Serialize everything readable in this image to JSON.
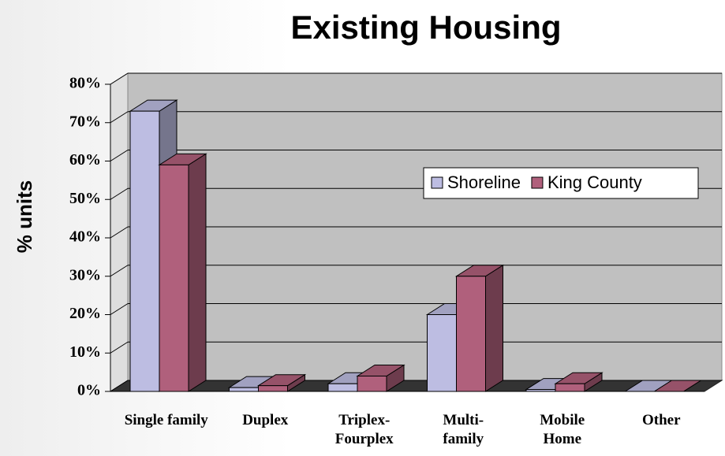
{
  "chart_data": {
    "type": "bar3d",
    "title": "Existing Housing",
    "y_label": "% units",
    "categories": [
      "Single family",
      "Duplex",
      "Triplex-\nFourplex",
      "Multi-\nfamily",
      "Mobile\nHome",
      "Other"
    ],
    "series": [
      {
        "name": "Shoreline",
        "color": "#bdbde2",
        "values": [
          73,
          1,
          2,
          20,
          0.5,
          0
        ]
      },
      {
        "name": "King County",
        "color": "#b0607c",
        "values": [
          59,
          1.5,
          4,
          30,
          2,
          0
        ]
      }
    ],
    "ylim": [
      0,
      80
    ],
    "yticks": [
      {
        "value": 0,
        "label": "0%"
      },
      {
        "value": 10,
        "label": "10%"
      },
      {
        "value": 20,
        "label": "20%"
      },
      {
        "value": 30,
        "label": "30%"
      },
      {
        "value": 40,
        "label": "40%"
      },
      {
        "value": 50,
        "label": "50%"
      },
      {
        "value": 60,
        "label": "60%"
      },
      {
        "value": 70,
        "label": "70%"
      },
      {
        "value": 80,
        "label": "80%"
      }
    ],
    "grid": true,
    "legend": "right"
  }
}
